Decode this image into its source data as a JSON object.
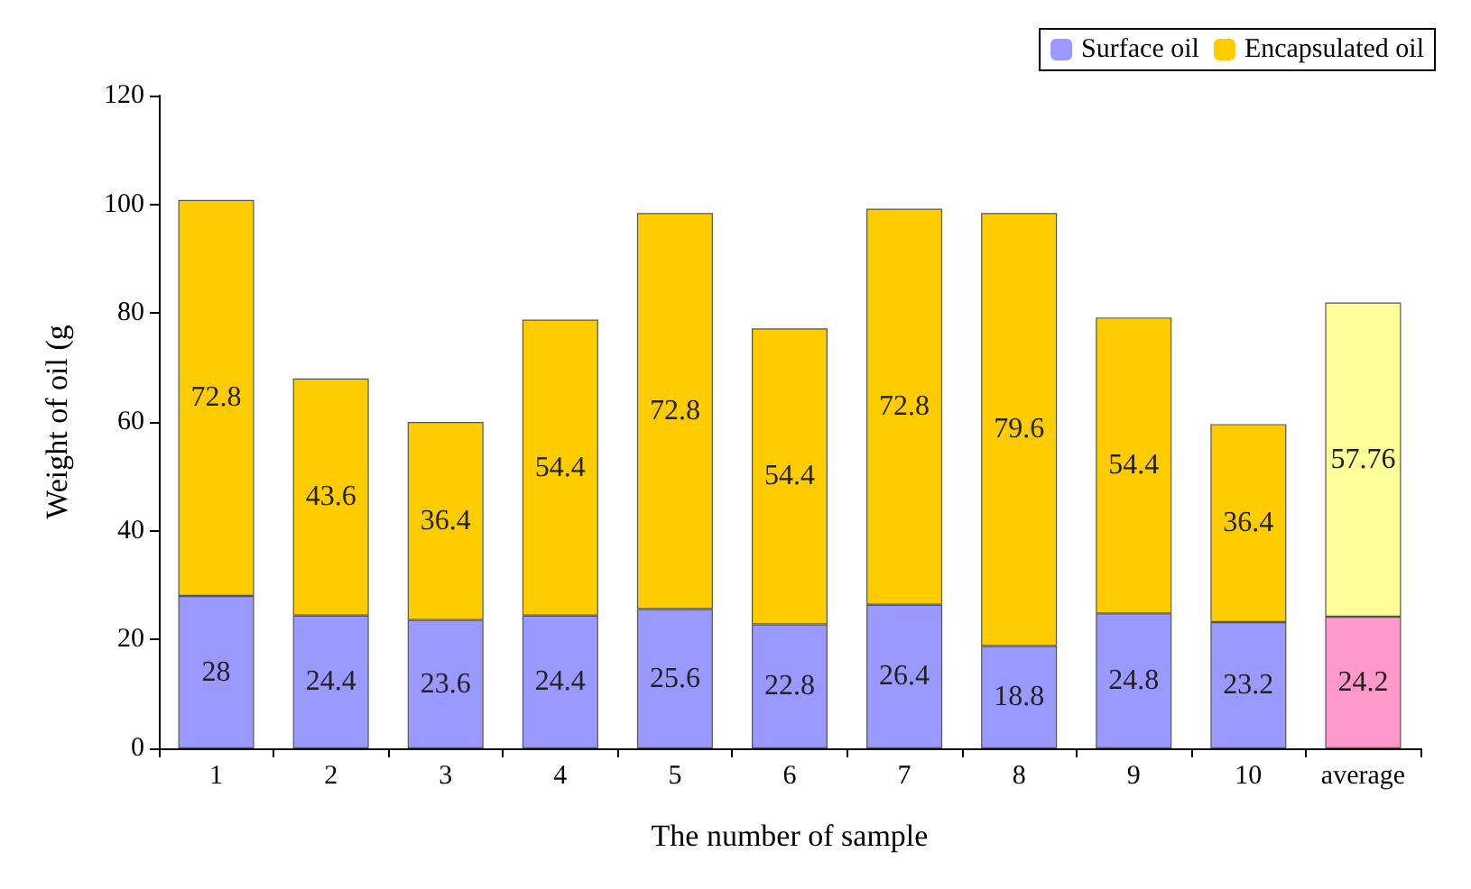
{
  "chart_data": {
    "type": "bar",
    "stacked": true,
    "xlabel": "The number of sample",
    "ylabel": "Weight of oil (g",
    "categories": [
      "1",
      "2",
      "3",
      "4",
      "5",
      "6",
      "7",
      "8",
      "9",
      "10",
      "average"
    ],
    "series": [
      {
        "name": "Surface oil",
        "color": "#9999ff",
        "colors": [
          "#9999ff",
          "#9999ff",
          "#9999ff",
          "#9999ff",
          "#9999ff",
          "#9999ff",
          "#9999ff",
          "#9999ff",
          "#9999ff",
          "#9999ff",
          "#ff99cc"
        ],
        "values": [
          28,
          24.4,
          23.6,
          24.4,
          25.6,
          22.8,
          26.4,
          18.8,
          24.8,
          23.2,
          24.2
        ]
      },
      {
        "name": "Encapsulated oil",
        "color": "#ffcc00",
        "colors": [
          "#ffcc00",
          "#ffcc00",
          "#ffcc00",
          "#ffcc00",
          "#ffcc00",
          "#ffcc00",
          "#ffcc00",
          "#ffcc00",
          "#ffcc00",
          "#ffcc00",
          "#ffff99"
        ],
        "values": [
          72.8,
          43.6,
          36.4,
          54.4,
          72.8,
          54.4,
          72.8,
          79.6,
          54.4,
          36.4,
          57.76
        ]
      }
    ],
    "ylim": [
      0,
      120
    ],
    "yticks": [
      0,
      20,
      40,
      60,
      80,
      100,
      120
    ],
    "grid": false,
    "legend": "top right",
    "data_labels": true
  }
}
